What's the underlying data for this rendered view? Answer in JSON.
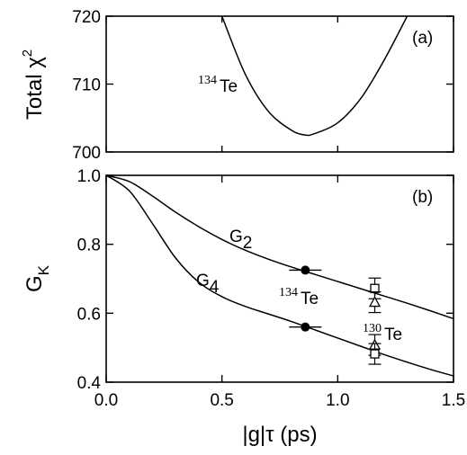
{
  "chart_data": [
    {
      "panel": "(a)",
      "type": "line",
      "ylabel": "Total χ",
      "ylabel_sup": "2",
      "ylim": [
        700,
        720
      ],
      "xlim": [
        0,
        1.5
      ],
      "yticks": [
        "700",
        "710",
        "720"
      ],
      "annotation": {
        "sup": "134",
        "text": "Te"
      },
      "series": [
        {
          "x": [
            0.5,
            0.6,
            0.7,
            0.8,
            0.86,
            0.9,
            1.0,
            1.1,
            1.2,
            1.3
          ],
          "y": [
            720,
            711.5,
            706,
            703.2,
            702.5,
            702.7,
            704.3,
            707.9,
            713.5,
            720
          ]
        }
      ]
    },
    {
      "panel": "(b)",
      "type": "line",
      "xlabel": "|g|τ (ps)",
      "ylabel": "G",
      "ylabel_sub": "K",
      "xlim": [
        0,
        1.5
      ],
      "ylim": [
        0.4,
        1.0
      ],
      "xticks": [
        "0.0",
        "0.5",
        "1.0",
        "1.5"
      ],
      "yticks": [
        "0.4",
        "0.6",
        "0.8",
        "1.0"
      ],
      "curve_labels": [
        {
          "main": "G",
          "sub": "2"
        },
        {
          "main": "G",
          "sub": "4"
        }
      ],
      "annotations": [
        {
          "sup": "134",
          "text": "Te"
        },
        {
          "sup": "130",
          "text": "Te"
        }
      ],
      "series": [
        {
          "x": [
            0,
            0.1,
            0.2,
            0.3,
            0.4,
            0.5,
            0.6,
            0.7,
            0.8,
            0.9,
            1.0,
            1.1,
            1.2,
            1.3,
            1.4,
            1.5
          ],
          "y": [
            1.0,
            0.982,
            0.94,
            0.893,
            0.851,
            0.814,
            0.783,
            0.757,
            0.734,
            0.713,
            0.692,
            0.671,
            0.65,
            0.629,
            0.607,
            0.584
          ]
        },
        {
          "x": [
            0,
            0.1,
            0.2,
            0.3,
            0.4,
            0.5,
            0.6,
            0.7,
            0.8,
            0.9,
            1.0,
            1.1,
            1.2,
            1.3,
            1.4,
            1.5
          ],
          "y": [
            1.0,
            0.955,
            0.86,
            0.76,
            0.69,
            0.648,
            0.62,
            0.598,
            0.576,
            0.552,
            0.528,
            0.504,
            0.48,
            0.458,
            0.437,
            0.418
          ]
        }
      ],
      "points": [
        {
          "label": "134Te G2",
          "marker": "circle",
          "x": 0.86,
          "y": 0.725,
          "xerr": 0.07,
          "yerr": 0
        },
        {
          "label": "134Te G4",
          "marker": "circle",
          "x": 0.86,
          "y": 0.56,
          "xerr": 0.07,
          "yerr": 0
        },
        {
          "label": "130Te G2 a",
          "marker": "square",
          "x": 1.16,
          "y": 0.672,
          "xerr": 0,
          "yerr": 0.03
        },
        {
          "label": "130Te G2 b",
          "marker": "triangle",
          "x": 1.16,
          "y": 0.632,
          "xerr": 0,
          "yerr": 0.03
        },
        {
          "label": "130Te G4 a",
          "marker": "triangle",
          "x": 1.16,
          "y": 0.508,
          "xerr": 0,
          "yerr": 0.03
        },
        {
          "label": "130Te G4 b",
          "marker": "square",
          "x": 1.16,
          "y": 0.482,
          "xerr": 0,
          "yerr": 0.03
        }
      ]
    }
  ]
}
